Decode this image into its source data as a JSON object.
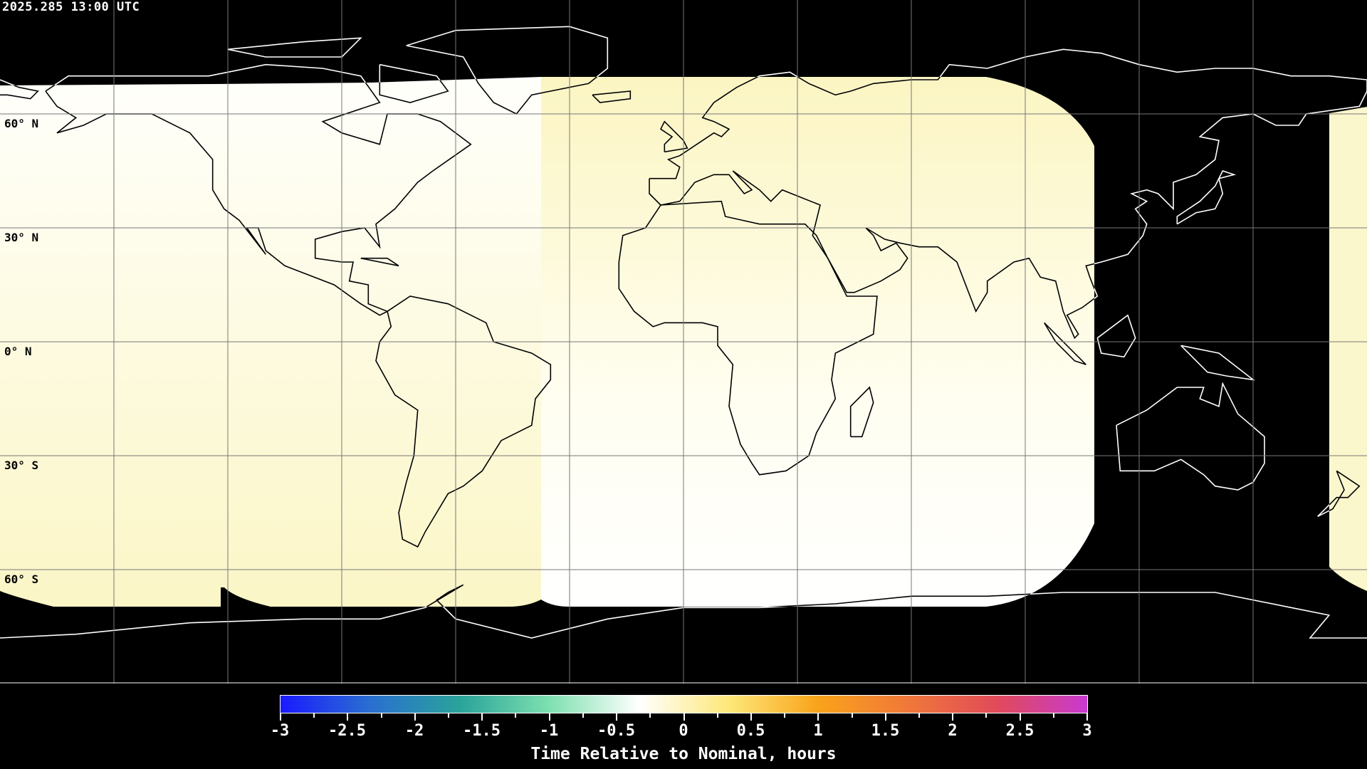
{
  "timestamp": "2025.285 13:00 UTC",
  "map": {
    "projection": "equirectangular",
    "grid_spacing_deg": 30,
    "lat_labels": [
      "60° N",
      "30° N",
      "0° N",
      "30° S",
      "60° S"
    ],
    "background_color": "#000000",
    "coverage_colors": {
      "near_zero": "#fffffb",
      "slightly_positive": "#fbf6c6"
    }
  },
  "colorbar": {
    "min": -3,
    "max": 3,
    "tick_labels": [
      "-3",
      "-2.5",
      "-2",
      "-1.5",
      "-1",
      "-0.5",
      "0",
      "0.5",
      "1",
      "1.5",
      "2",
      "2.5",
      "3"
    ],
    "colors": [
      "#1a1aff",
      "#2a6fd0",
      "#2aa39a",
      "#7ee0b0",
      "#ffffff",
      "#fde87a",
      "#f9a31a",
      "#f0783a",
      "#e04a5a",
      "#c83ad0"
    ],
    "title": "Time Relative to Nominal, hours"
  }
}
